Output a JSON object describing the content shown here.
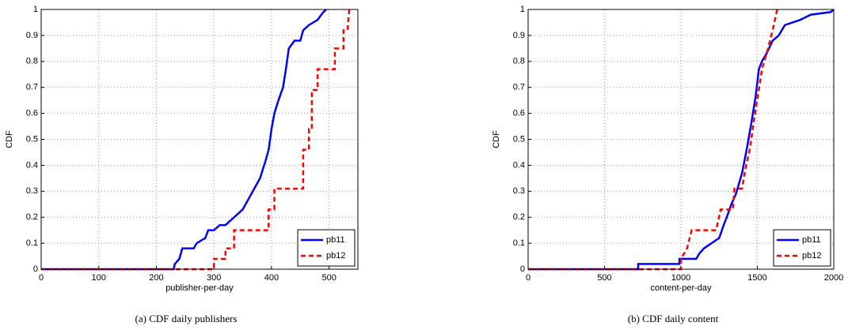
{
  "chart_data": [
    {
      "type": "line",
      "caption": "(a) CDF daily publishers",
      "xlabel": "publisher-per-day",
      "ylabel": "CDF",
      "xlim": [
        0,
        550
      ],
      "xticks": [
        0,
        100,
        200,
        300,
        400,
        500
      ],
      "ylim": [
        0,
        1
      ],
      "yticks": [
        0,
        0.1,
        0.2,
        0.3,
        0.4,
        0.5,
        0.6,
        0.7,
        0.8,
        0.9,
        1
      ],
      "grid": true,
      "legend": "lower right",
      "series": [
        {
          "name": "pb11",
          "color": "#0000ff",
          "style": "solid",
          "x": [
            0,
            230,
            232,
            240,
            245,
            265,
            270,
            285,
            290,
            300,
            310,
            320,
            330,
            340,
            350,
            360,
            370,
            380,
            390,
            395,
            400,
            405,
            412,
            420,
            425,
            430,
            440,
            450,
            455,
            465,
            480,
            490,
            495
          ],
          "values": [
            0,
            0,
            0.02,
            0.04,
            0.08,
            0.08,
            0.1,
            0.12,
            0.15,
            0.15,
            0.17,
            0.17,
            0.19,
            0.21,
            0.23,
            0.27,
            0.31,
            0.35,
            0.42,
            0.46,
            0.54,
            0.6,
            0.65,
            0.7,
            0.77,
            0.85,
            0.88,
            0.88,
            0.92,
            0.94,
            0.96,
            0.99,
            1
          ]
        },
        {
          "name": "pb12",
          "color": "#ff0000",
          "style": "dashed",
          "x": [
            0,
            300,
            300,
            320,
            320,
            335,
            335,
            395,
            395,
            405,
            405,
            455,
            455,
            465,
            465,
            470,
            470,
            480,
            480,
            510,
            510,
            525,
            525,
            532,
            535
          ],
          "values": [
            0,
            0,
            0.04,
            0.04,
            0.08,
            0.08,
            0.15,
            0.15,
            0.23,
            0.23,
            0.31,
            0.31,
            0.46,
            0.46,
            0.54,
            0.54,
            0.69,
            0.69,
            0.77,
            0.77,
            0.85,
            0.85,
            0.92,
            0.92,
            1
          ]
        }
      ]
    },
    {
      "type": "line",
      "caption": "(b) CDF daily content",
      "xlabel": "content-per-day",
      "ylabel": "CDF",
      "xlim": [
        0,
        2000
      ],
      "xticks": [
        0,
        500,
        1000,
        1500,
        2000
      ],
      "ylim": [
        0,
        1
      ],
      "yticks": [
        0,
        0.1,
        0.2,
        0.3,
        0.4,
        0.5,
        0.6,
        0.7,
        0.8,
        0.9,
        1
      ],
      "grid": true,
      "legend": "lower right",
      "series": [
        {
          "name": "pb11",
          "color": "#0000ff",
          "style": "solid",
          "x": [
            0,
            720,
            720,
            990,
            990,
            1100,
            1120,
            1150,
            1200,
            1250,
            1280,
            1300,
            1330,
            1360,
            1400,
            1430,
            1460,
            1490,
            1510,
            1530,
            1560,
            1600,
            1640,
            1680,
            1780,
            1850,
            1980,
            2000
          ],
          "values": [
            0,
            0,
            0.02,
            0.02,
            0.04,
            0.04,
            0.06,
            0.08,
            0.1,
            0.12,
            0.17,
            0.2,
            0.25,
            0.29,
            0.37,
            0.46,
            0.56,
            0.67,
            0.77,
            0.8,
            0.83,
            0.88,
            0.9,
            0.94,
            0.96,
            0.98,
            0.99,
            1
          ]
        },
        {
          "name": "pb12",
          "color": "#ff0000",
          "style": "dashed",
          "x": [
            0,
            1000,
            1000,
            1040,
            1070,
            1230,
            1260,
            1340,
            1350,
            1400,
            1420,
            1450,
            1470,
            1490,
            1510,
            1530,
            1570,
            1600,
            1630
          ],
          "values": [
            0,
            0,
            0.04,
            0.08,
            0.15,
            0.15,
            0.23,
            0.23,
            0.31,
            0.31,
            0.38,
            0.46,
            0.54,
            0.62,
            0.69,
            0.77,
            0.85,
            0.92,
            1
          ]
        }
      ]
    }
  ]
}
